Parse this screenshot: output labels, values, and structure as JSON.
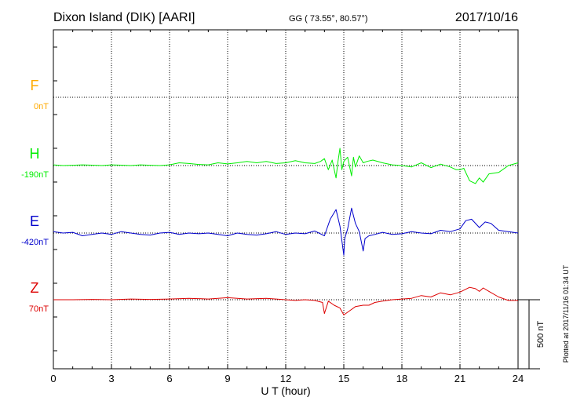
{
  "header": {
    "station": "Dixon Island (DIK)  [AARI]",
    "coords": "GG ( 73.55°,  80.57°)",
    "date": "2017/10/16"
  },
  "plotted_note": "Plotted at 2017/11/16 01:34 UT",
  "chart_data": {
    "type": "line",
    "xlabel": "U T (hour)",
    "xlim": [
      0,
      24
    ],
    "xticks": [
      0,
      3,
      6,
      9,
      12,
      15,
      18,
      21,
      24
    ],
    "xtick_labels": [
      "0",
      "3",
      "6",
      "9",
      "12",
      "15",
      "18",
      "21",
      "24"
    ],
    "scale_bar_label": "500 nT",
    "scale_bar_nT": 500,
    "series": [
      {
        "name": "F",
        "baseline_label": "0nT",
        "color": "#ffaa00",
        "x": [],
        "y": []
      },
      {
        "name": "H",
        "baseline_label": "-190nT",
        "color": "#00ee00",
        "x": [
          0,
          0.5,
          1,
          1.5,
          2,
          2.5,
          3,
          3.5,
          4,
          4.5,
          5,
          5.5,
          6,
          6.5,
          7,
          7.5,
          8,
          8.5,
          9,
          9.5,
          10,
          10.5,
          11,
          11.5,
          12,
          12.5,
          13,
          13.5,
          13.8,
          14.0,
          14.2,
          14.4,
          14.6,
          14.7,
          14.8,
          14.9,
          15.0,
          15.2,
          15.4,
          15.5,
          15.6,
          15.8,
          16.0,
          16.2,
          16.5,
          17.0,
          17.5,
          18.0,
          18.5,
          19.0,
          19.5,
          20.0,
          20.5,
          20.8,
          21.0,
          21.2,
          21.5,
          21.8,
          22.0,
          22.2,
          22.5,
          23.0,
          23.5,
          24.0
        ],
        "y": [
          5,
          0,
          2,
          5,
          3,
          0,
          5,
          3,
          0,
          5,
          2,
          0,
          5,
          20,
          15,
          8,
          5,
          20,
          12,
          20,
          30,
          20,
          30,
          15,
          20,
          35,
          20,
          15,
          30,
          50,
          -30,
          40,
          -90,
          30,
          125,
          -30,
          30,
          60,
          -75,
          60,
          -10,
          70,
          20,
          30,
          40,
          20,
          5,
          0,
          -10,
          20,
          -15,
          10,
          -10,
          -30,
          -30,
          -20,
          -110,
          -130,
          -90,
          -120,
          -60,
          -50,
          0,
          20
        ]
      },
      {
        "name": "E",
        "baseline_label": "-420nT",
        "color": "#0000cc",
        "x": [
          0,
          0.5,
          1,
          1.5,
          2,
          2.5,
          3,
          3.5,
          4,
          4.5,
          5,
          5.5,
          6,
          6.5,
          7,
          7.5,
          8,
          8.5,
          9,
          9.5,
          10,
          10.5,
          11,
          11.5,
          12,
          12.5,
          13,
          13.5,
          14.0,
          14.3,
          14.6,
          14.8,
          15.0,
          15.05,
          15.2,
          15.4,
          15.6,
          15.8,
          16.0,
          16.1,
          16.3,
          16.6,
          17.0,
          17.5,
          18.0,
          18.5,
          19.0,
          19.5,
          20.0,
          20.5,
          21.0,
          21.3,
          21.6,
          22.0,
          22.3,
          22.6,
          23.0,
          23.5,
          24.0
        ],
        "y": [
          10,
          0,
          5,
          -20,
          -10,
          0,
          -10,
          10,
          0,
          -10,
          -15,
          0,
          5,
          -10,
          0,
          -5,
          0,
          -10,
          -20,
          0,
          -10,
          -15,
          -5,
          10,
          -10,
          0,
          -5,
          15,
          -20,
          100,
          170,
          50,
          -160,
          -40,
          30,
          180,
          70,
          10,
          -130,
          -40,
          -20,
          -10,
          5,
          -10,
          -5,
          10,
          0,
          -5,
          20,
          10,
          30,
          90,
          100,
          40,
          80,
          70,
          20,
          10,
          0
        ]
      },
      {
        "name": "Z",
        "baseline_label": "70nT",
        "color": "#dd0000",
        "x": [
          0,
          1,
          2,
          3,
          4,
          5,
          6,
          7,
          8,
          9,
          10,
          11,
          12,
          12.5,
          13,
          13.5,
          13.9,
          14.0,
          14.2,
          14.5,
          14.8,
          15.0,
          15.3,
          15.6,
          16.0,
          16.3,
          16.6,
          17.0,
          17.5,
          18.0,
          18.5,
          19.0,
          19.5,
          20.0,
          20.5,
          21.0,
          21.5,
          21.8,
          22.0,
          22.2,
          22.5,
          23.0,
          23.5,
          24.0
        ],
        "y": [
          0,
          0,
          2,
          0,
          5,
          2,
          5,
          10,
          5,
          15,
          5,
          10,
          0,
          -5,
          0,
          -5,
          -20,
          -100,
          -10,
          -40,
          -60,
          -110,
          -80,
          -50,
          -40,
          -40,
          -20,
          -10,
          0,
          5,
          10,
          30,
          20,
          50,
          35,
          55,
          90,
          80,
          60,
          85,
          60,
          20,
          -5,
          -5
        ]
      }
    ]
  }
}
